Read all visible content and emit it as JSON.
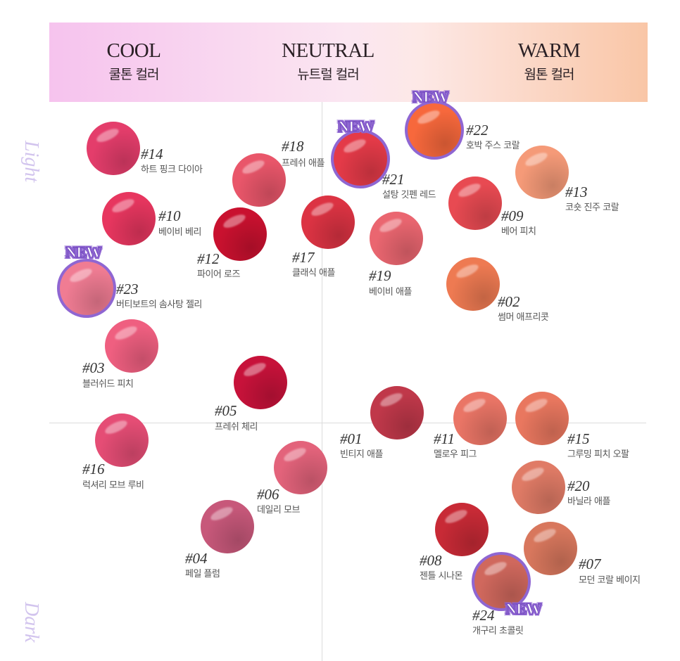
{
  "header": {
    "cool": {
      "en": "COOL",
      "ko": "쿨톤 컬러"
    },
    "neutral": {
      "en": "NEUTRAL",
      "ko": "뉴트럴 컬러"
    },
    "warm": {
      "en": "WARM",
      "ko": "웜톤 컬러"
    }
  },
  "axis": {
    "light": "Light",
    "dark": "Dark"
  },
  "badge_text": "NEW",
  "swatches": [
    {
      "id": "14",
      "num": "#14",
      "name": "하트 핑크 다이아",
      "color": "#e43d6b",
      "is_new": false
    },
    {
      "id": "10",
      "num": "#10",
      "name": "베이비 베리",
      "color": "#e7365f",
      "is_new": false
    },
    {
      "id": "23",
      "num": "#23",
      "name": "버티보트의 솜사탕 젤리",
      "color": "#f07c93",
      "is_new": true
    },
    {
      "id": "03",
      "num": "#03",
      "name": "블러쉬드 피치",
      "color": "#ef5f80",
      "is_new": false
    },
    {
      "id": "16",
      "num": "#16",
      "name": "럭셔리 모브 루비",
      "color": "#e54d75",
      "is_new": false
    },
    {
      "id": "18",
      "num": "#18",
      "name": "프레쉬 애플",
      "color": "#e9566a",
      "is_new": false
    },
    {
      "id": "12",
      "num": "#12",
      "name": "파이어 로즈",
      "color": "#c9112f",
      "is_new": false
    },
    {
      "id": "17",
      "num": "#17",
      "name": "클래식 애플",
      "color": "#dc3343",
      "is_new": false
    },
    {
      "id": "05",
      "num": "#05",
      "name": "프레쉬 체리",
      "color": "#c7123a",
      "is_new": false
    },
    {
      "id": "06",
      "num": "#06",
      "name": "데일리 모브",
      "color": "#e3637b",
      "is_new": false
    },
    {
      "id": "04",
      "num": "#04",
      "name": "페일 플럼",
      "color": "#c7587a",
      "is_new": false
    },
    {
      "id": "21",
      "num": "#21",
      "name": "설탕 깃펜 레드",
      "color": "#e43a48",
      "is_new": true
    },
    {
      "id": "19",
      "num": "#19",
      "name": "베이비 애플",
      "color": "#ea6670",
      "is_new": false
    },
    {
      "id": "01",
      "num": "#01",
      "name": "빈티지 애플",
      "color": "#c0384a",
      "is_new": false
    },
    {
      "id": "22",
      "num": "#22",
      "name": "호박 주스 코랄",
      "color": "#f7683c",
      "is_new": true
    },
    {
      "id": "13",
      "num": "#13",
      "name": "코숏 진주 코랄",
      "color": "#f59a78",
      "is_new": false
    },
    {
      "id": "09",
      "num": "#09",
      "name": "베어 피치",
      "color": "#e84a52",
      "is_new": false
    },
    {
      "id": "02",
      "num": "#02",
      "name": "썸머 애프리콧",
      "color": "#ee7a52",
      "is_new": false
    },
    {
      "id": "11",
      "num": "#11",
      "name": "멜로우 피그",
      "color": "#ea7566",
      "is_new": false
    },
    {
      "id": "15",
      "num": "#15",
      "name": "그루밍 피치 오팔",
      "color": "#e9775f",
      "is_new": false
    },
    {
      "id": "20",
      "num": "#20",
      "name": "바닐라 애플",
      "color": "#e07b66",
      "is_new": false
    },
    {
      "id": "08",
      "num": "#08",
      "name": "젠틀 시나몬",
      "color": "#c82a36",
      "is_new": false
    },
    {
      "id": "07",
      "num": "#07",
      "name": "모던 코랄 베이지",
      "color": "#d8775d",
      "is_new": false
    },
    {
      "id": "24",
      "num": "#24",
      "name": "개구리 초콜릿",
      "color": "#d0685d",
      "is_new": true
    }
  ]
}
